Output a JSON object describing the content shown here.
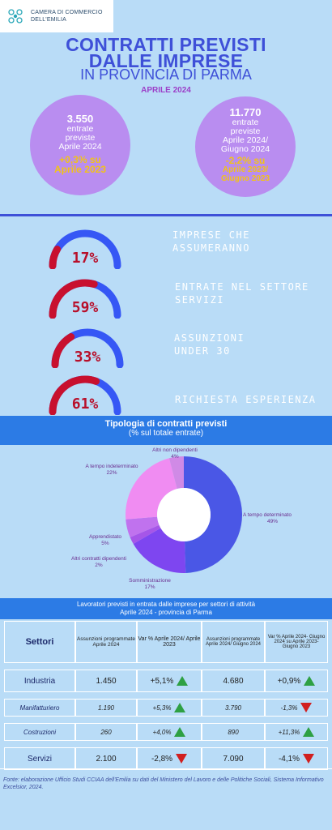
{
  "header": {
    "logo_line1": "CAMERA DI COMMERCIO",
    "logo_line2": "DELL'EMILIA",
    "title_line1": "CONTRATTI PREVISTI",
    "title_line2": "DALLE IMPRESE",
    "title_line3": "IN PROVINCIA DI PARMA",
    "period": "APRILE 2024"
  },
  "kpis": [
    {
      "value": "3.550",
      "line1": "entrate",
      "line2": "previste",
      "line3": "Aprile 2024",
      "var": "+0,3% su",
      "var_ref": "Aprile 2023"
    },
    {
      "value": "11.770",
      "line1": "entrate",
      "line2": "previste",
      "line3": "Aprile 2024/",
      "line4": "Giugno 2024",
      "var": "-2,2% su",
      "var_ref1": "Aprile 2023/",
      "var_ref2": "Giugno 2023"
    }
  ],
  "gauges": [
    {
      "value": 17,
      "text": "17%",
      "label1": "IMPRESE CHE",
      "label2": "ASSUMERANNO"
    },
    {
      "value": 59,
      "text": "59%",
      "label1": "ENTRATE NEL SETTORE",
      "label2": "SERVIZI"
    },
    {
      "value": 33,
      "text": "33%",
      "label1": "ASSUNZIONI",
      "label2": "UNDER 30"
    },
    {
      "value": 61,
      "text": "61%",
      "label1": "RICHIESTA ESPERIENZA",
      "label2": ""
    }
  ],
  "colors": {
    "gauge_fill": "#c8102e",
    "gauge_track": "#3657f5",
    "accent": "#3e50d8",
    "circle": "#b98df0"
  },
  "chart_data": {
    "type": "pie",
    "title": "Tipologia di contratti previsti",
    "subtitle": "(% sul totale entrate)",
    "slices": [
      {
        "label": "A tempo determinato",
        "value": 49,
        "text": "49%",
        "color": "#4a57e6"
      },
      {
        "label": "Somministrazione",
        "value": 17,
        "text": "17%",
        "color": "#7e46f0"
      },
      {
        "label": "Altri contratti dipendenti",
        "value": 2,
        "text": "2%",
        "color": "#a656e8"
      },
      {
        "label": "Apprendistato",
        "value": 5,
        "text": "5%",
        "color": "#c072ee"
      },
      {
        "label": "A tempo indeterminato",
        "value": 22,
        "text": "22%",
        "color": "#f08cf2"
      },
      {
        "label": "Altri non dipendenti",
        "value": 4,
        "text": "4%",
        "color": "#d08ae6"
      }
    ]
  },
  "table": {
    "title1": "Lavoratori previsti in entrata dalle imprese per settori di attività",
    "title2": "Aprile 2024 - provincia di Parma",
    "headers": [
      "Settori",
      "Assunzioni programmate Aprile 2024",
      "Var % Aprile 2024/ Aprile 2023",
      "Assunzioni programmate Aprile 2024/ Giugno 2024",
      "Var % Aprile 2024- Giugno 2024 su Aprile 2023- Giugno 2023"
    ],
    "rows": [
      {
        "settore": "Industria",
        "a1": "1.450",
        "v1": "+5,1%",
        "d1": "up",
        "a2": "4.680",
        "v2": "+0,9%",
        "d2": "up"
      },
      {
        "settore": "Manifatturiero",
        "a1": "1.190",
        "v1": "+5,3%",
        "d1": "up",
        "a2": "3.790",
        "v2": "-1,3%",
        "d2": "down"
      },
      {
        "settore": "Costruzioni",
        "a1": "260",
        "v1": "+4,0%",
        "d1": "up",
        "a2": "890",
        "v2": "+11,3%",
        "d2": "up"
      },
      {
        "settore": "Servizi",
        "a1": "2.100",
        "v1": "-2,8%",
        "d1": "down",
        "a2": "7.090",
        "v2": "-4,1%",
        "d2": "down"
      }
    ]
  },
  "footer": "Fonte: elaborazione Ufficio Studi CCIAA dell'Emilia su dati del Ministero del Lavoro e delle Politiche Sociali, Sistema Informativo Excelsior, 2024."
}
